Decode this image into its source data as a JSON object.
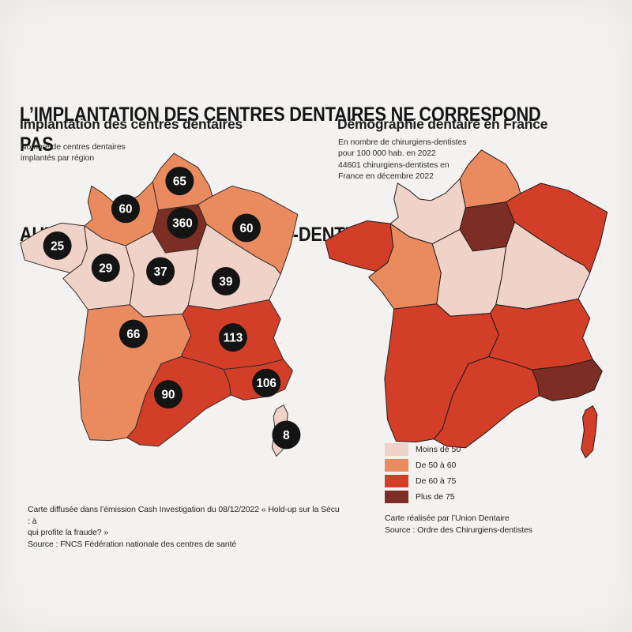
{
  "page": {
    "background": "#f3f2f0",
    "title_lines": [
      "L’IMPLANTATION DES CENTRES DENTAIRES NE CORRESPOND PAS",
      "AUX BESOINS  DE CHIRURGIENS-DENTISTES EN FRANCE"
    ]
  },
  "palette": {
    "pale": "#efd2c8",
    "orange": "#e98a5f",
    "red": "#d23e28",
    "dark": "#7d2e24",
    "badge": "#141414",
    "badge_text": "#ffffff",
    "border_left": "#352b2a",
    "border_right": "#221c1b"
  },
  "left_panel": {
    "title": "Implantation des centres dentaires",
    "subtitle_lines": [
      "Nombre de centres dentaires",
      "implantés par région"
    ],
    "footer_lines": [
      "Carte diffusée dans l’émission Cash Investigation du 08/12/2022 « Hold-up sur la Sécu : à",
      "qui profite la fraude? »",
      "Source : FNCS Fédération nationale des centres de santé"
    ]
  },
  "right_panel": {
    "title": "Démographie dentaire en France",
    "subtitle_lines": [
      "En nombre de chirurgiens-dentistes",
      "pour 100 000 hab. en 2022",
      "44601 chirurgiens-dentistes en",
      "France en décembre 2022"
    ],
    "footer_lines": [
      "Carte réalisée par l’Union Dentaire",
      "Source : Ordre des Chirurgiens-dentistes"
    ]
  },
  "legend": {
    "items": [
      {
        "label": "Moins de 50",
        "color_key": "pale",
        "color": "#efd2c8"
      },
      {
        "label": "De 50 à 60",
        "color_key": "orange",
        "color": "#e98a5f"
      },
      {
        "label": "De 60 à 75",
        "color_key": "red",
        "color": "#d23e28"
      },
      {
        "label": "Plus de 75",
        "color_key": "dark",
        "color": "#7d2e24"
      }
    ]
  },
  "chart_data": [
    {
      "type": "choropleth_map",
      "map": "left",
      "title": "Implantation des centres dentaires",
      "metric": "Nombre de centres dentaires implantés par région",
      "regions": [
        {
          "id": "hauts_de_france",
          "name": "Hauts-de-France",
          "value": 65,
          "color": "orange"
        },
        {
          "id": "normandie",
          "name": "Normandie",
          "value": 60,
          "color": "orange"
        },
        {
          "id": "ile_de_france",
          "name": "Île-de-France",
          "value": 360,
          "color": "dark"
        },
        {
          "id": "grand_est",
          "name": "Grand Est",
          "value": 60,
          "color": "orange"
        },
        {
          "id": "bretagne",
          "name": "Bretagne",
          "value": 25,
          "color": "pale"
        },
        {
          "id": "pays_de_la_loire",
          "name": "Pays de la Loire",
          "value": 29,
          "color": "pale"
        },
        {
          "id": "centre_val_de_loire",
          "name": "Centre-Val de Loire",
          "value": 37,
          "color": "pale"
        },
        {
          "id": "bourgogne_franche_comte",
          "name": "Bourgogne-Franche-Comté",
          "value": 39,
          "color": "pale"
        },
        {
          "id": "nouvelle_aquitaine",
          "name": "Nouvelle-Aquitaine",
          "value": 66,
          "color": "orange"
        },
        {
          "id": "auvergne_rhone_alpes",
          "name": "Auvergne-Rhône-Alpes",
          "value": 113,
          "color": "red"
        },
        {
          "id": "occitanie",
          "name": "Occitanie",
          "value": 90,
          "color": "red"
        },
        {
          "id": "paca",
          "name": "Provence-Alpes-Côte d'Azur",
          "value": 106,
          "color": "red"
        },
        {
          "id": "corse",
          "name": "Corse",
          "value": 8,
          "color": "pale"
        }
      ]
    },
    {
      "type": "choropleth_map",
      "map": "right",
      "title": "Démographie dentaire en France",
      "metric": "Chirurgiens-dentistes pour 100 000 hab. en 2022",
      "regions": [
        {
          "id": "hauts_de_france",
          "name": "Hauts-de-France",
          "category": "De 50 à 60",
          "color": "orange"
        },
        {
          "id": "normandie",
          "name": "Normandie",
          "category": "Moins de 50",
          "color": "pale"
        },
        {
          "id": "ile_de_france",
          "name": "Île-de-France",
          "category": "Plus de 75",
          "color": "dark"
        },
        {
          "id": "grand_est",
          "name": "Grand Est",
          "category": "De 60 à 75",
          "color": "red"
        },
        {
          "id": "bretagne",
          "name": "Bretagne",
          "category": "De 60 à 75",
          "color": "red"
        },
        {
          "id": "pays_de_la_loire",
          "name": "Pays de la Loire",
          "category": "De 50 à 60",
          "color": "orange"
        },
        {
          "id": "centre_val_de_loire",
          "name": "Centre-Val de Loire",
          "category": "Moins de 50",
          "color": "pale"
        },
        {
          "id": "bourgogne_franche_comte",
          "name": "Bourgogne-Franche-Comté",
          "category": "Moins de 50",
          "color": "pale"
        },
        {
          "id": "nouvelle_aquitaine",
          "name": "Nouvelle-Aquitaine",
          "category": "De 60 à 75",
          "color": "red"
        },
        {
          "id": "auvergne_rhone_alpes",
          "name": "Auvergne-Rhône-Alpes",
          "category": "De 60 à 75",
          "color": "red"
        },
        {
          "id": "occitanie",
          "name": "Occitanie",
          "category": "De 60 à 75",
          "color": "red"
        },
        {
          "id": "paca",
          "name": "Provence-Alpes-Côte d'Azur",
          "category": "Plus de 75",
          "color": "dark"
        },
        {
          "id": "corse",
          "name": "Corse",
          "category": "De 60 à 75",
          "color": "red"
        }
      ]
    }
  ]
}
